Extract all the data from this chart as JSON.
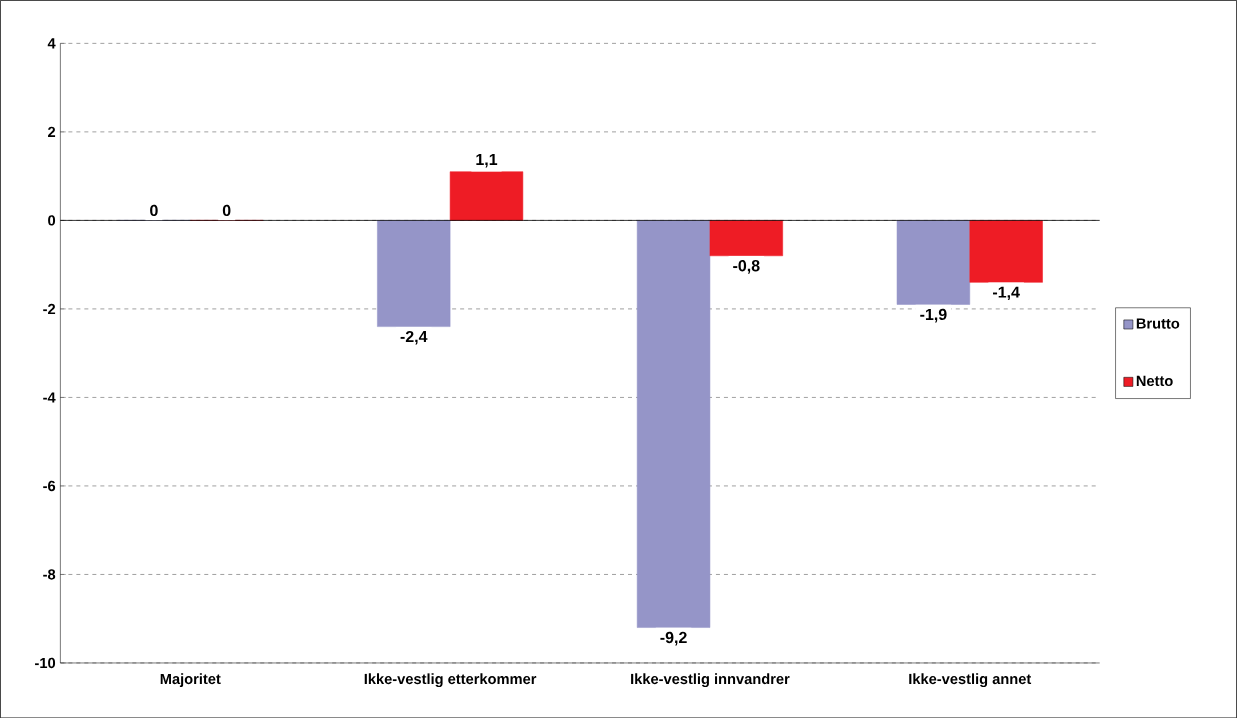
{
  "chart_data": {
    "type": "bar",
    "categories": [
      "Majoritet",
      "Ikke-vestlig etterkommer",
      "Ikke-vestlig innvandrer",
      "Ikke-vestlig annet"
    ],
    "series": [
      {
        "name": "Brutto",
        "color": "#9595c8",
        "values": [
          0,
          -2.4,
          -9.2,
          -1.9
        ],
        "value_labels": [
          "0",
          "-2,4",
          "-9,2",
          "-1,9"
        ]
      },
      {
        "name": "Netto",
        "color": "#ee1c25",
        "values": [
          0,
          1.1,
          -0.8,
          -1.4
        ],
        "value_labels": [
          "0",
          "1,1",
          "-0,8",
          "-1,4"
        ]
      }
    ],
    "ylim": [
      -10,
      4
    ],
    "yticks": [
      -10,
      -8,
      -6,
      -4,
      -2,
      0,
      2,
      4
    ],
    "grid": "y",
    "legend": "right"
  }
}
